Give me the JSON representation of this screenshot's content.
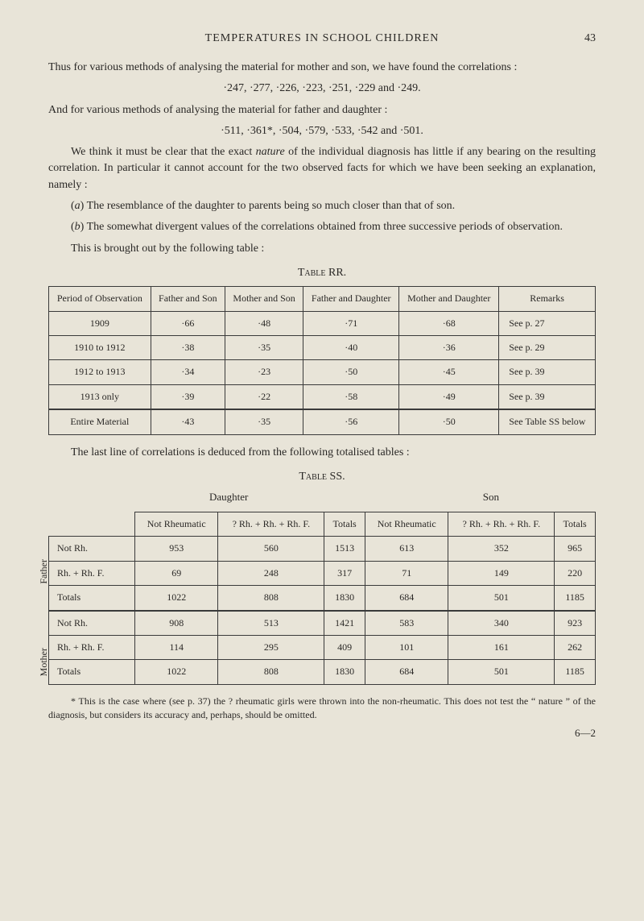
{
  "page": {
    "running_head": "TEMPERATURES IN SCHOOL CHILDREN",
    "number": "43"
  },
  "para": {
    "p1": "Thus for various methods of analysing the material for mother and son, we have found the correlations :",
    "p2": "·247, ·277, ·226, ·223, ·251, ·229 and ·249.",
    "p3": "And for various methods of analysing the material for father and daughter :",
    "p4": "·511, ·361*, ·504, ·579, ·533, ·542 and ·501.",
    "p5a": "We think it must be clear that the exact ",
    "p5i": "nature",
    "p5b": " of the individual diagnosis has little if any bearing on the resulting correlation. In particular it cannot account for the two observed facts for which we have been seeking an explanation, namely :",
    "p6a": "(",
    "p6i": "a",
    "p6b": ") The resemblance of the daughter to parents being so much closer than that of son.",
    "p7a": "(",
    "p7i": "b",
    "p7b": ") The somewhat divergent values of the correlations obtained from three successive periods of observation.",
    "p8": "This is brought out by the following table :",
    "p9": "The last line of correlations is deduced from the following totalised tables :"
  },
  "tableRR": {
    "caption": "Table RR.",
    "headers": [
      "Period of Observation",
      "Father and Son",
      "Mother and Son",
      "Father and Daughter",
      "Mother and Daughter",
      "Remarks"
    ],
    "rows": [
      [
        "1909",
        "·66",
        "·48",
        "·71",
        "·68",
        "See p. 27"
      ],
      [
        "1910 to 1912",
        "·38",
        "·35",
        "·40",
        "·36",
        "See p. 29"
      ],
      [
        "1912 to 1913",
        "·34",
        "·23",
        "·50",
        "·45",
        "See p. 39"
      ],
      [
        "1913 only",
        "·39",
        "·22",
        "·58",
        "·49",
        "See p. 39"
      ]
    ],
    "entire": [
      "Entire Material",
      "·43",
      "·35",
      "·56",
      "·50",
      "See Table SS below"
    ]
  },
  "tableSS": {
    "caption": "Table SS.",
    "super_left": "Daughter",
    "super_right": "Son",
    "vlabel1": "Father",
    "vlabel2": "Mother",
    "headers": [
      "",
      "Not Rheumatic",
      "? Rh. + Rh. + Rh. F.",
      "Totals",
      "Not Rheumatic",
      "? Rh. + Rh. + Rh. F.",
      "Totals"
    ],
    "group1": [
      [
        "Not Rh.",
        "953",
        "560",
        "1513",
        "613",
        "352",
        "965"
      ],
      [
        "Rh. + Rh. F.",
        "69",
        "248",
        "317",
        "71",
        "149",
        "220"
      ],
      [
        "Totals",
        "1022",
        "808",
        "1830",
        "684",
        "501",
        "1185"
      ]
    ],
    "group2": [
      [
        "Not Rh.",
        "908",
        "513",
        "1421",
        "583",
        "340",
        "923"
      ],
      [
        "Rh. + Rh. F.",
        "114",
        "295",
        "409",
        "101",
        "161",
        "262"
      ],
      [
        "Totals",
        "1022",
        "808",
        "1830",
        "684",
        "501",
        "1185"
      ]
    ]
  },
  "footnote": {
    "text": "* This is the case where (see p. 37) the ? rheumatic girls were thrown into the non-rheumatic. This does not test the “ nature ” of the diagnosis, but considers its accuracy and, perhaps, should be omitted.",
    "sig": "6—2"
  }
}
